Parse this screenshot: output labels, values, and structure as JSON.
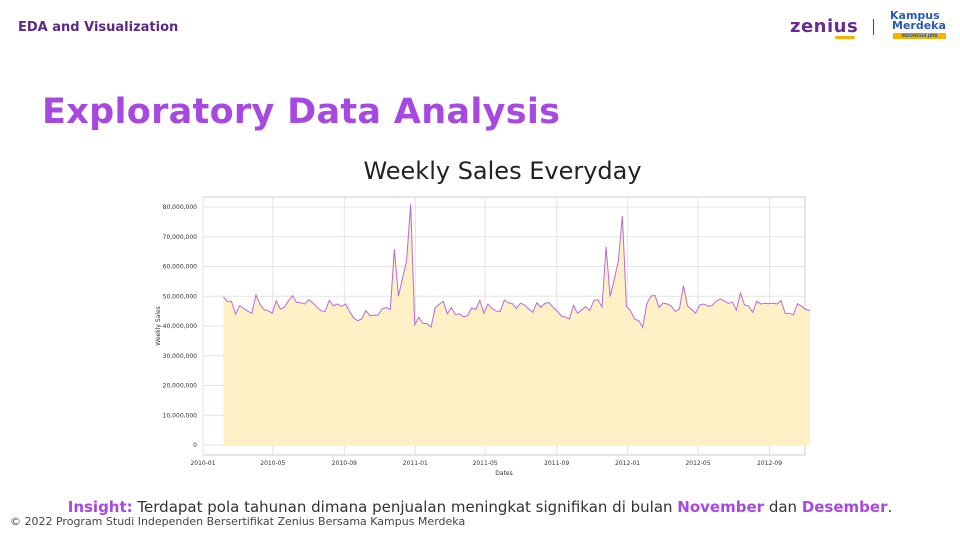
{
  "header": {
    "label": "EDA and Visualization"
  },
  "logos": {
    "zenius": "zenius",
    "kampus_merdeka_line1": "Kampus",
    "kampus_merdeka_line2": "Merdeka",
    "kampus_merdeka_tag": "INDONESIA JAYA"
  },
  "slide": {
    "title": "Exploratory Data Analysis"
  },
  "chart_data": {
    "type": "area",
    "title": "Weekly Sales Everyday",
    "xlabel": "Dates",
    "ylabel": "Weekly Sales",
    "x_start": "2010-02-05",
    "x_frequency": "weekly",
    "xlim": [
      "2010-01-01",
      "2012-11-01"
    ],
    "ylim": [
      0,
      80000000
    ],
    "x_ticks": [
      "2010-01",
      "2010-05",
      "2010-09",
      "2011-01",
      "2011-05",
      "2011-09",
      "2012-01",
      "2012-05",
      "2012-09"
    ],
    "y_ticks": [
      "0",
      "10,000,000",
      "20,000,000",
      "30,000,000",
      "40,000,000",
      "50,000,000",
      "60,000,000",
      "70,000,000",
      "80,000,000"
    ],
    "grid": true,
    "line_color": "#b66bd6",
    "fill_color": "#fff0c6",
    "series": [
      {
        "values": [
          49750000,
          48330000,
          48280000,
          44000000,
          46870000,
          45930000,
          44990000,
          44250000,
          50420000,
          47370000,
          45500000,
          45100000,
          44300000,
          48500000,
          45680000,
          46300000,
          48470000,
          50200000,
          47900000,
          47800000,
          47400000,
          48900000,
          47700000,
          46400000,
          45100000,
          44900000,
          48600000,
          46800000,
          47400000,
          46600000,
          47400000,
          44900000,
          42700000,
          41800000,
          42400000,
          45200000,
          43500000,
          43600000,
          43700000,
          45800000,
          46200000,
          45600000,
          65800000,
          50000000,
          56000000,
          61900000,
          80900000,
          40400000,
          42900000,
          40900000,
          40800000,
          39600000,
          46100000,
          47300000,
          48300000,
          44100000,
          46200000,
          43800000,
          44100000,
          43100000,
          43500000,
          46100000,
          45600000,
          48600000,
          44300000,
          47400000,
          45900000,
          45000000,
          44900000,
          48700000,
          47800000,
          47500000,
          45900000,
          47700000,
          47000000,
          45700000,
          44600000,
          47800000,
          46300000,
          47600000,
          47900000,
          46200000,
          45000000,
          43400000,
          43000000,
          42400000,
          46900000,
          44300000,
          45400000,
          46500000,
          45200000,
          48600000,
          48800000,
          46400000,
          66600000,
          49900000,
          55600000,
          61800000,
          77000000,
          46600000,
          45100000,
          42300000,
          41800000,
          39600000,
          47500000,
          50000000,
          50300000,
          46300000,
          47700000,
          47400000,
          46700000,
          44900000,
          45600000,
          53600000,
          46700000,
          45600000,
          44300000,
          47100000,
          47400000,
          46700000,
          46800000,
          48300000,
          49100000,
          48500000,
          47600000,
          48000000,
          45400000,
          51100000,
          47100000,
          46700000,
          44600000,
          48300000,
          47400000,
          47600000,
          47500000,
          47700000,
          47400000,
          48500000,
          44200000,
          44300000,
          43700000,
          47500000,
          46700000,
          45500000,
          45300000,
          45600000
        ]
      }
    ]
  },
  "insight": {
    "label": "Insight:",
    "text_before": " Terdapat pola tahunan dimana penjualan meningkat signifikan di bulan ",
    "month1": "November",
    "text_mid": " dan ",
    "month2": "Desember",
    "text_end": "."
  },
  "footer": {
    "text": "© 2022 Program Studi Independen Bersertifikat Zenius Bersama Kampus Merdeka"
  }
}
